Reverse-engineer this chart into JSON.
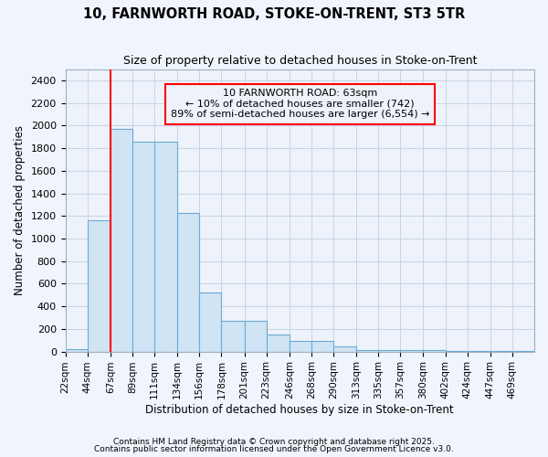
{
  "title1": "10, FARNWORTH ROAD, STOKE-ON-TRENT, ST3 5TR",
  "title2": "Size of property relative to detached houses in Stoke-on-Trent",
  "xlabel": "Distribution of detached houses by size in Stoke-on-Trent",
  "ylabel": "Number of detached properties",
  "bar_color": "#d0e4f4",
  "bar_edge_color": "#6aaad4",
  "grid_color": "#c8d4e4",
  "bg_color": "#f0f4fc",
  "plot_bg_color": "#eef2fa",
  "red_line_x": 67,
  "categories": [
    "22sqm",
    "44sqm",
    "67sqm",
    "89sqm",
    "111sqm",
    "134sqm",
    "156sqm",
    "178sqm",
    "201sqm",
    "223sqm",
    "246sqm",
    "268sqm",
    "290sqm",
    "313sqm",
    "335sqm",
    "357sqm",
    "380sqm",
    "402sqm",
    "424sqm",
    "447sqm",
    "469sqm"
  ],
  "bin_edges": [
    22,
    44,
    67,
    89,
    111,
    134,
    156,
    178,
    201,
    223,
    246,
    268,
    290,
    313,
    335,
    357,
    380,
    402,
    424,
    447,
    469,
    491
  ],
  "values": [
    25,
    1160,
    1970,
    1855,
    1855,
    1230,
    525,
    275,
    270,
    150,
    90,
    90,
    45,
    10,
    10,
    10,
    10,
    5,
    5,
    5,
    5
  ],
  "ylim": [
    0,
    2500
  ],
  "yticks": [
    0,
    200,
    400,
    600,
    800,
    1000,
    1200,
    1400,
    1600,
    1800,
    2000,
    2200,
    2400
  ],
  "annotation_title": "10 FARNWORTH ROAD: 63sqm",
  "annotation_line1": "← 10% of detached houses are smaller (742)",
  "annotation_line2": "89% of semi-detached houses are larger (6,554) →",
  "footnote1": "Contains HM Land Registry data © Crown copyright and database right 2025.",
  "footnote2": "Contains public sector information licensed under the Open Government Licence v3.0."
}
